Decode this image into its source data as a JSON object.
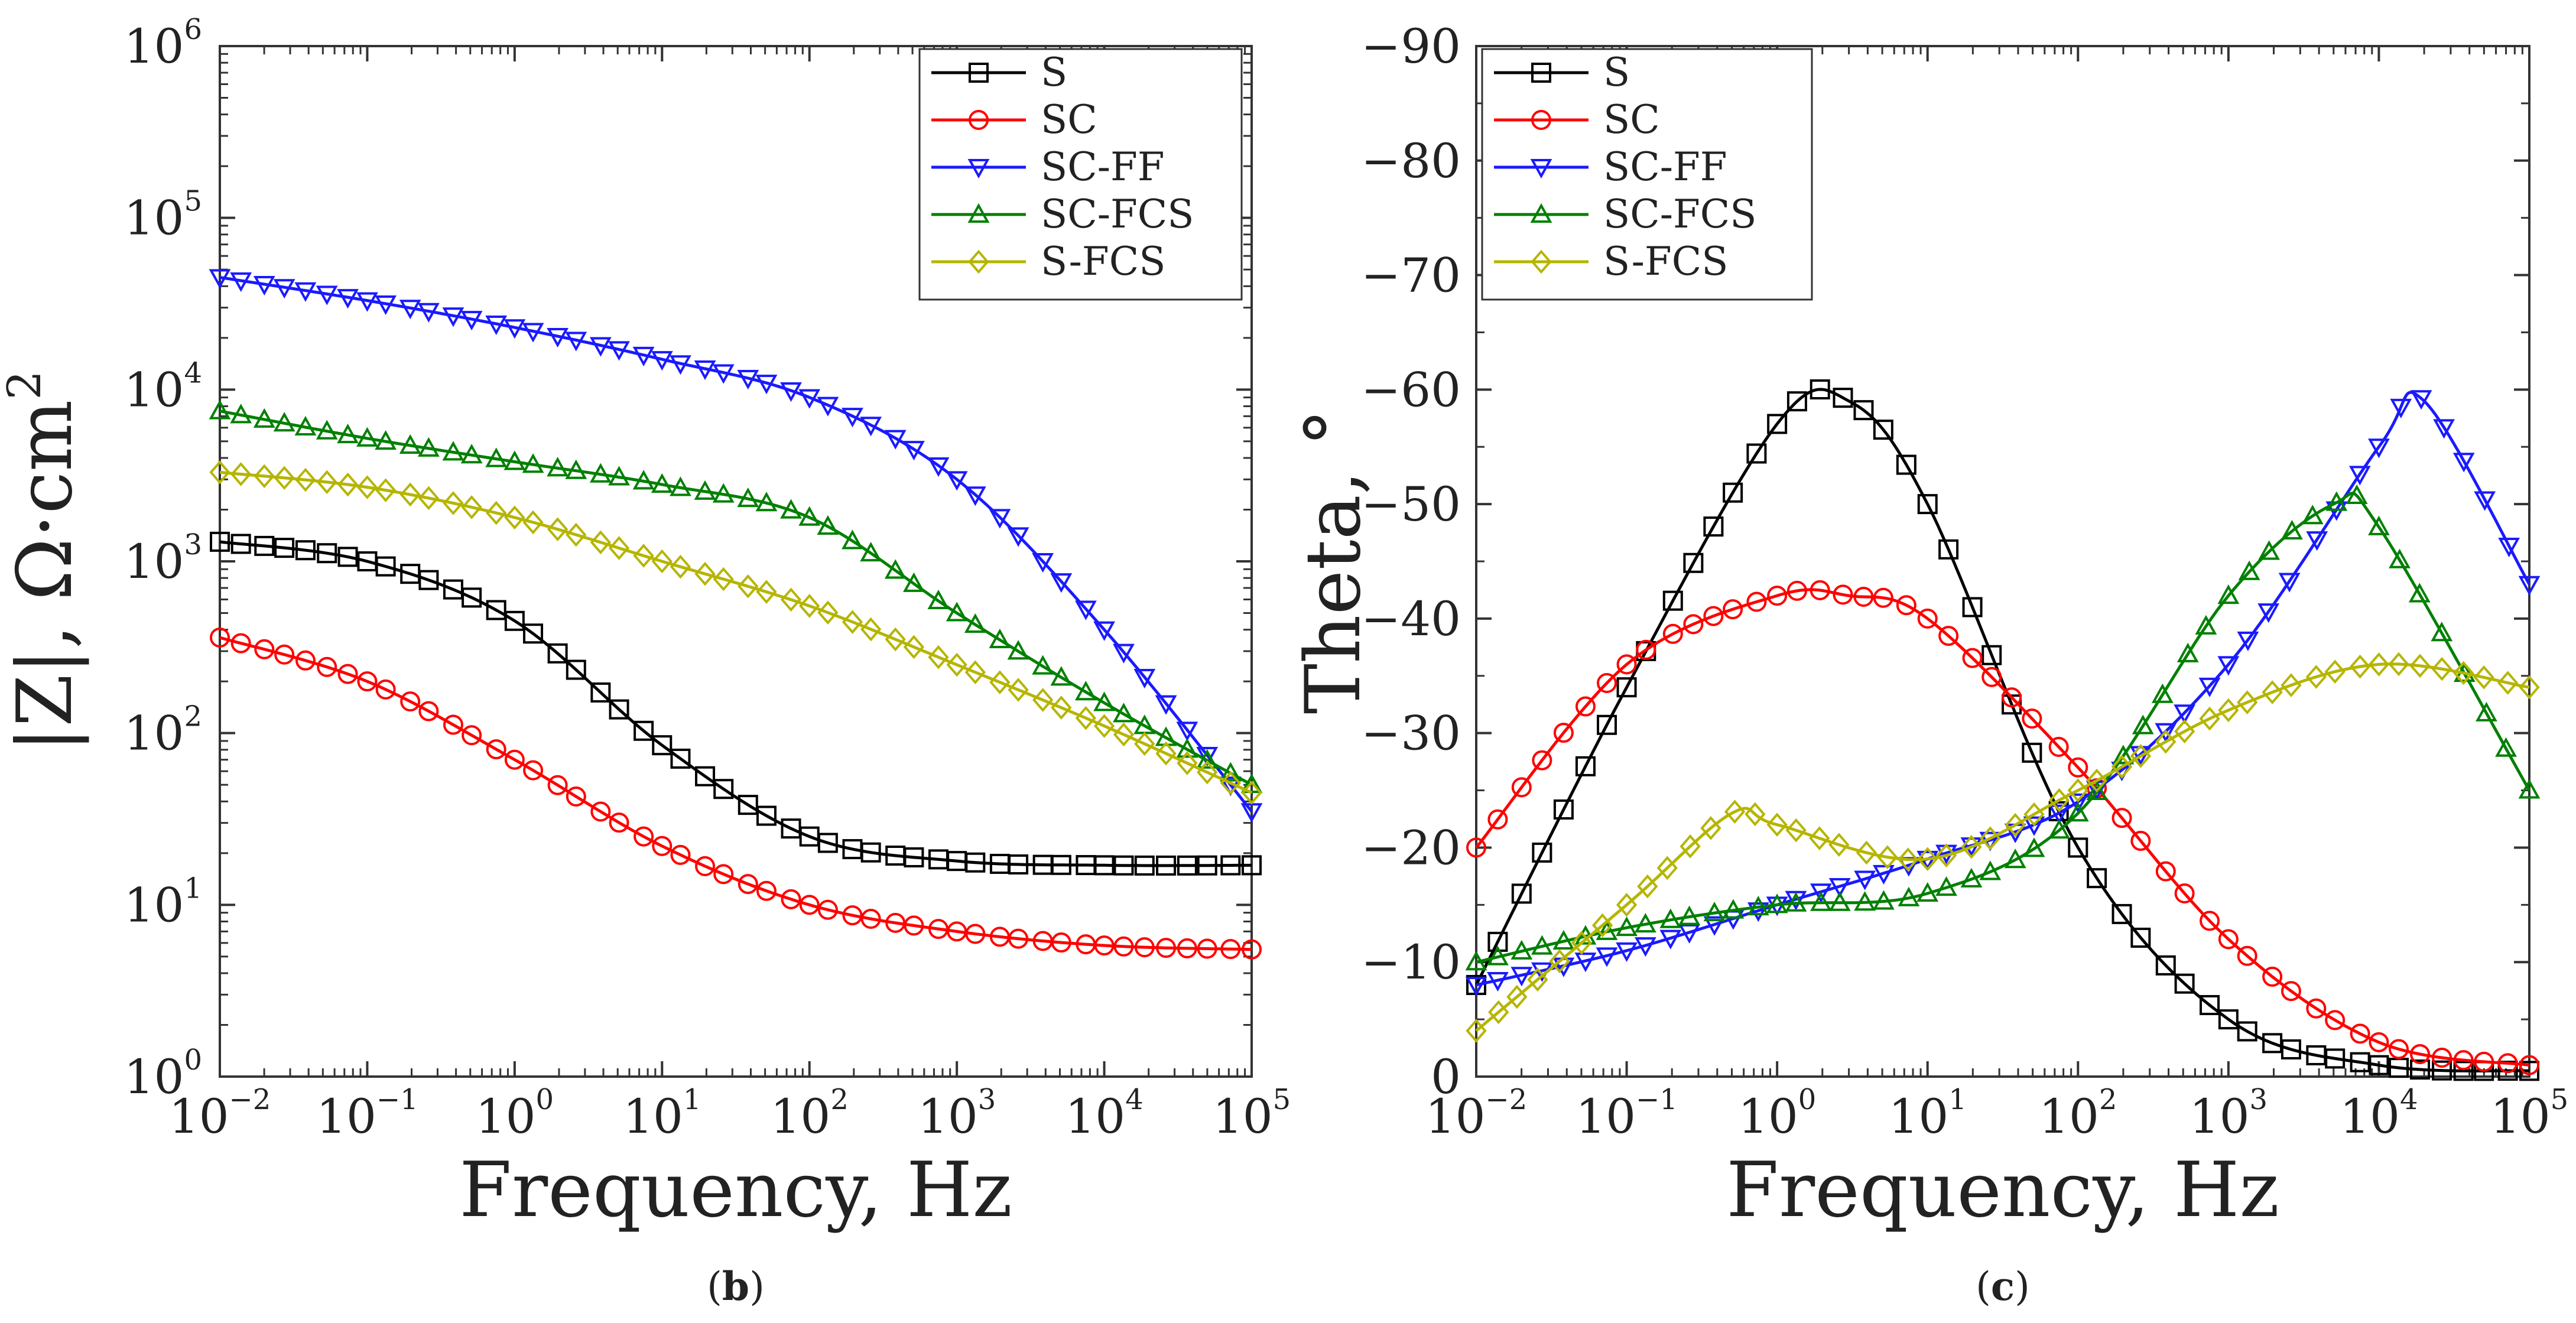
{
  "colors": {
    "S": "#000000",
    "SC": "#ff0000",
    "SC-FF": "#1a1aff",
    "SC-FCS": "#008000",
    "S-FCS": "#b5b500"
  },
  "chart_data": [
    {
      "panel_id": "b",
      "caption": {
        "open": "(",
        "letter": "b",
        "close": ")"
      },
      "type": "line",
      "xlabel": "Frequency, Hz",
      "ylabel": "|Z|, Ω·cm",
      "ylabel_sup": "2",
      "xscale": "log",
      "yscale": "log",
      "xlim": [
        0.01,
        100000
      ],
      "ylim": [
        1,
        1000000
      ],
      "x_ticks": [
        {
          "base": "10",
          "exp": "−2"
        },
        {
          "base": "10",
          "exp": "−1"
        },
        {
          "base": "10",
          "exp": "0"
        },
        {
          "base": "10",
          "exp": "1"
        },
        {
          "base": "10",
          "exp": "2"
        },
        {
          "base": "10",
          "exp": "3"
        },
        {
          "base": "10",
          "exp": "4"
        },
        {
          "base": "10",
          "exp": "5"
        }
      ],
      "y_ticks": [
        {
          "base": "10",
          "exp": "0"
        },
        {
          "base": "10",
          "exp": "1"
        },
        {
          "base": "10",
          "exp": "2"
        },
        {
          "base": "10",
          "exp": "3"
        },
        {
          "base": "10",
          "exp": "4"
        },
        {
          "base": "10",
          "exp": "5"
        },
        {
          "base": "10",
          "exp": "6"
        }
      ],
      "legend_position": "top-right",
      "series": [
        {
          "name": "S",
          "marker": "square",
          "points": [
            [
              0.01,
              1300
            ],
            [
              0.1,
              1000
            ],
            [
              1,
              450
            ],
            [
              10,
              85
            ],
            [
              100,
              25
            ],
            [
              1000,
              18
            ],
            [
              10000,
              17
            ],
            [
              100000,
              17
            ]
          ]
        },
        {
          "name": "SC",
          "marker": "circle",
          "points": [
            [
              0.01,
              360
            ],
            [
              0.1,
              200
            ],
            [
              1,
              70
            ],
            [
              10,
              22
            ],
            [
              100,
              10
            ],
            [
              1000,
              7
            ],
            [
              10000,
              5.8
            ],
            [
              100000,
              5.5
            ]
          ]
        },
        {
          "name": "SC-FF",
          "marker": "triangle-down",
          "points": [
            [
              0.01,
              45000
            ],
            [
              0.1,
              33000
            ],
            [
              1,
              23000
            ],
            [
              10,
              15000
            ],
            [
              100,
              9000
            ],
            [
              1000,
              3000
            ],
            [
              10000,
              400
            ],
            [
              100000,
              35
            ]
          ]
        },
        {
          "name": "SC-FCS",
          "marker": "triangle-up",
          "points": [
            [
              0.01,
              7500
            ],
            [
              0.1,
              5200
            ],
            [
              1,
              3800
            ],
            [
              10,
              2800
            ],
            [
              100,
              1800
            ],
            [
              1000,
              500
            ],
            [
              10000,
              150
            ],
            [
              100000,
              50
            ]
          ]
        },
        {
          "name": "S-FCS",
          "marker": "diamond",
          "points": [
            [
              0.01,
              3300
            ],
            [
              0.1,
              2700
            ],
            [
              1,
              1800
            ],
            [
              10,
              1000
            ],
            [
              100,
              550
            ],
            [
              1000,
              250
            ],
            [
              10000,
              110
            ],
            [
              100000,
              45
            ]
          ]
        }
      ]
    },
    {
      "panel_id": "c",
      "caption": {
        "open": "(",
        "letter": "c",
        "close": ")"
      },
      "type": "line",
      "xlabel": "Frequency, Hz",
      "ylabel": "Theta, °",
      "xscale": "log",
      "yscale": "linear",
      "xlim": [
        0.01,
        100000
      ],
      "ylim": [
        0,
        -90
      ],
      "x_ticks": [
        {
          "base": "10",
          "exp": "−2"
        },
        {
          "base": "10",
          "exp": "−1"
        },
        {
          "base": "10",
          "exp": "0"
        },
        {
          "base": "10",
          "exp": "1"
        },
        {
          "base": "10",
          "exp": "2"
        },
        {
          "base": "10",
          "exp": "3"
        },
        {
          "base": "10",
          "exp": "4"
        },
        {
          "base": "10",
          "exp": "5"
        }
      ],
      "y_ticks": [
        "0",
        "−10",
        "−20",
        "−30",
        "−40",
        "−50",
        "−60",
        "−70",
        "−80",
        "−90"
      ],
      "legend_position": "top-left",
      "series": [
        {
          "name": "S",
          "marker": "square",
          "points": [
            [
              0.01,
              -8
            ],
            [
              0.1,
              -34
            ],
            [
              1,
              -57
            ],
            [
              3,
              -59
            ],
            [
              10,
              -50
            ],
            [
              100,
              -20
            ],
            [
              1000,
              -5
            ],
            [
              10000,
              -1
            ],
            [
              100000,
              -0.5
            ]
          ]
        },
        {
          "name": "SC",
          "marker": "circle",
          "points": [
            [
              0.01,
              -20
            ],
            [
              0.1,
              -36
            ],
            [
              1,
              -42
            ],
            [
              3,
              -42
            ],
            [
              10,
              -40
            ],
            [
              100,
              -27
            ],
            [
              1000,
              -12
            ],
            [
              10000,
              -3
            ],
            [
              100000,
              -1
            ]
          ]
        },
        {
          "name": "SC-FF",
          "marker": "triangle-down",
          "points": [
            [
              0.01,
              -8
            ],
            [
              0.1,
              -11
            ],
            [
              1,
              -15
            ],
            [
              10,
              -19
            ],
            [
              100,
              -24
            ],
            [
              1000,
              -36
            ],
            [
              10000,
              -55
            ],
            [
              20000,
              -59
            ],
            [
              100000,
              -43
            ]
          ]
        },
        {
          "name": "SC-FCS",
          "marker": "triangle-up",
          "points": [
            [
              0.01,
              -10
            ],
            [
              0.1,
              -13
            ],
            [
              1,
              -15
            ],
            [
              10,
              -16
            ],
            [
              100,
              -23
            ],
            [
              1000,
              -42
            ],
            [
              5000,
              -50
            ],
            [
              10000,
              -48
            ],
            [
              100000,
              -25
            ]
          ]
        },
        {
          "name": "S-FCS",
          "marker": "diamond",
          "points": [
            [
              0.01,
              -4
            ],
            [
              0.1,
              -15
            ],
            [
              0.5,
              -23
            ],
            [
              1,
              -22
            ],
            [
              10,
              -19
            ],
            [
              100,
              -25
            ],
            [
              1000,
              -32
            ],
            [
              10000,
              -36
            ],
            [
              100000,
              -34
            ]
          ]
        }
      ]
    }
  ]
}
